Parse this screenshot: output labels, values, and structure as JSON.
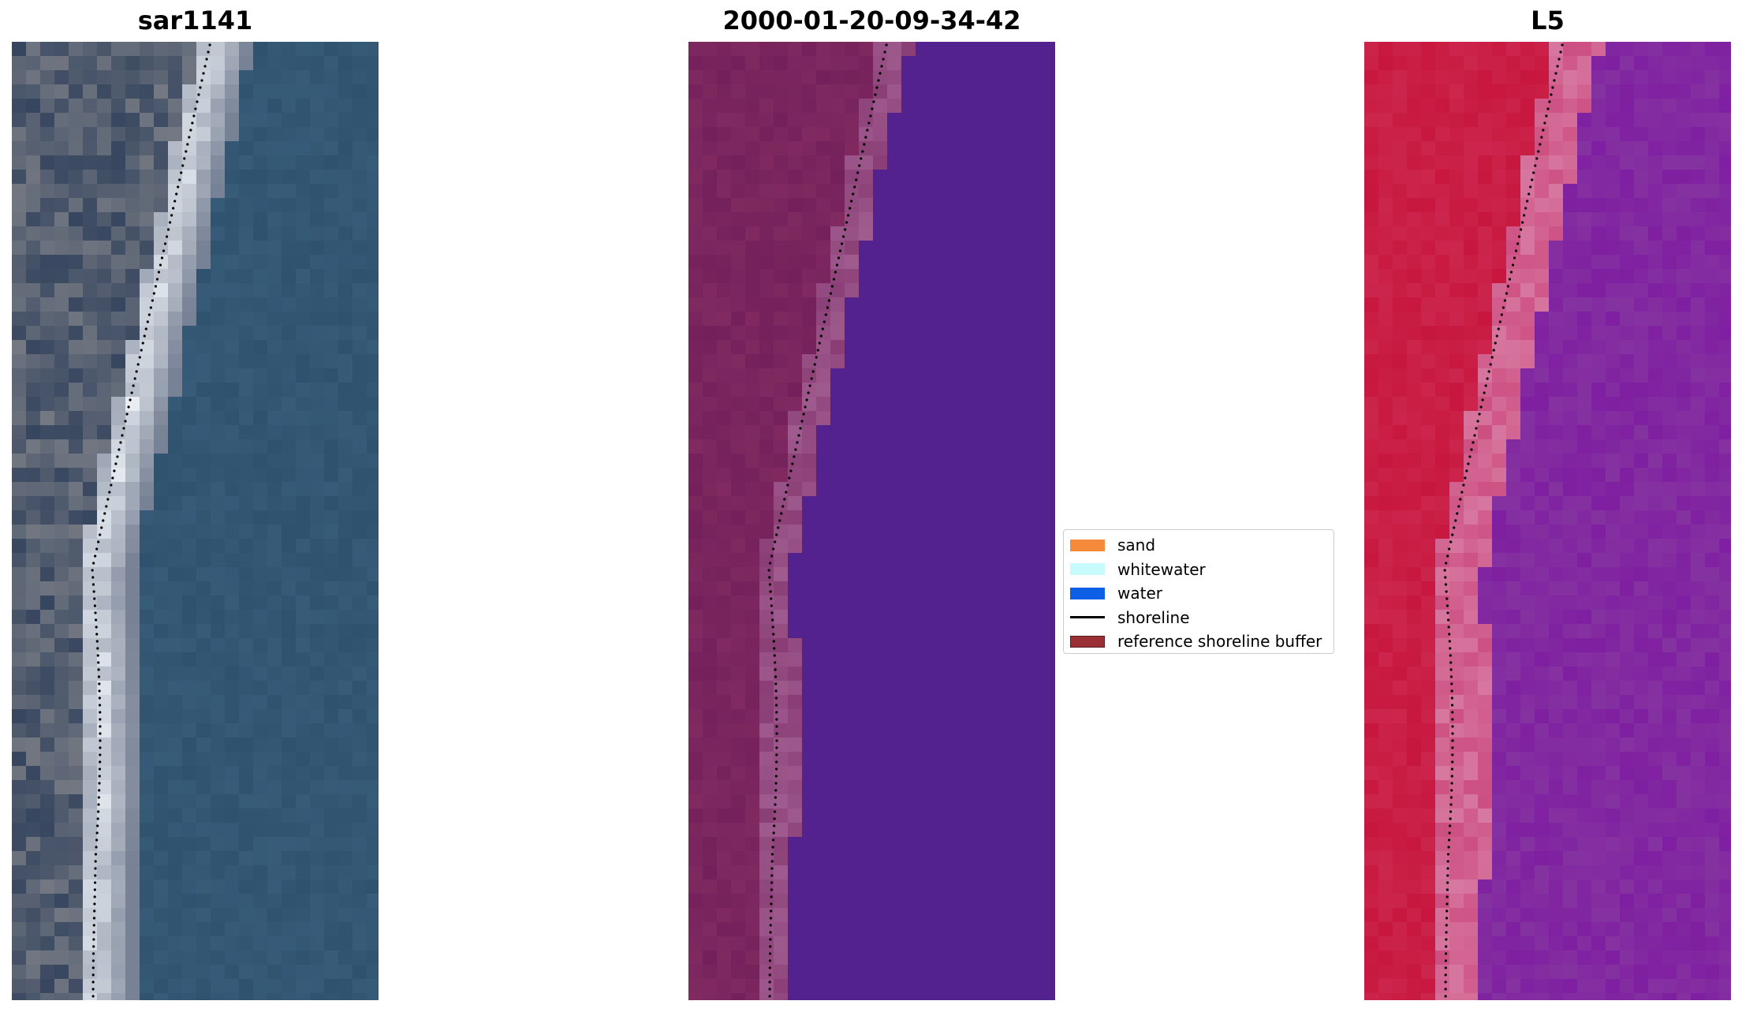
{
  "panels": [
    {
      "title": "sar1141"
    },
    {
      "title": "2000-01-20-09-34-42"
    },
    {
      "title": "L5"
    }
  ],
  "legend": {
    "items": [
      {
        "label": "sand",
        "color": "#f58a3b",
        "kind": "patch"
      },
      {
        "label": "whitewater",
        "color": "#c8fcfc",
        "kind": "patch"
      },
      {
        "label": "water",
        "color": "#0d5fe6",
        "kind": "patch"
      },
      {
        "label": "shoreline",
        "color": "#000000",
        "kind": "line"
      },
      {
        "label": "reference shoreline buffer",
        "color": "#9a3036",
        "kind": "patch"
      }
    ]
  },
  "colors": {
    "water_class": "#54228f",
    "land_class": "#74205a",
    "sand_class": "#aa6a9c",
    "rgb_water": "#2f526e",
    "l5_land": "#c8173e",
    "l5_water": "#7f1fa1"
  }
}
